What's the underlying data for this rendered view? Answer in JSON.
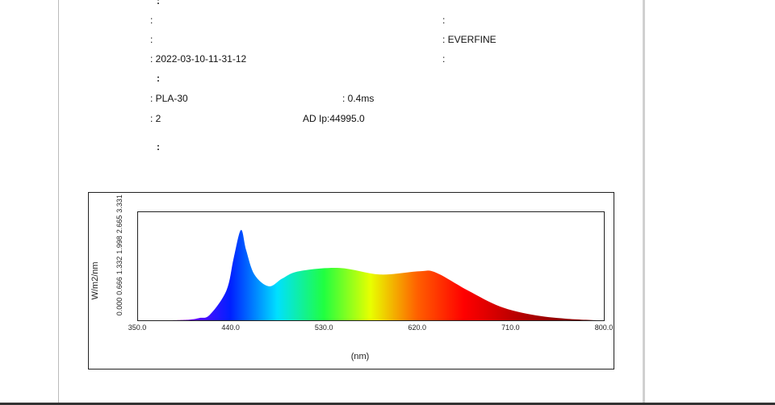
{
  "document": {
    "items": [
      ":",
      ":",
      ":",
      ":",
      ": EVERFINE",
      ": 2022-03-10-11-31-12",
      ":",
      ":",
      ": PLA-30",
      ": 0.4ms",
      ": 2",
      "AD Ip:44995.0",
      ":"
    ]
  },
  "chart_data": {
    "type": "area",
    "ylabel": "W/m2/nm",
    "xlabel": "(nm)",
    "x": [
      380,
      400,
      410,
      420,
      436,
      443,
      450,
      455,
      463,
      477,
      490,
      506,
      545,
      584,
      622,
      638,
      669,
      700,
      731,
      763,
      794
    ],
    "values": [
      0,
      0.02,
      0.07,
      0.17,
      0.91,
      1.9,
      2.76,
      2.15,
      1.4,
      1.04,
      1.28,
      1.5,
      1.6,
      1.4,
      1.5,
      1.46,
      0.91,
      0.42,
      0.17,
      0.05,
      0
    ],
    "colors": [
      "#800080",
      "#7f00ff",
      "#0020ff",
      "#00e0ff",
      "#20ff40",
      "#e8ff00",
      "#ff6000",
      "#ff0000",
      "#c00000",
      "#900000",
      "#800000"
    ],
    "xlim": [
      350,
      800
    ],
    "xticks": [
      {
        "value": 350,
        "label": "350.0"
      },
      {
        "value": 440,
        "label": "440.0"
      },
      {
        "value": 530,
        "label": "530.0"
      },
      {
        "value": 620,
        "label": "620.0"
      },
      {
        "value": 710,
        "label": "710.0"
      },
      {
        "value": 800,
        "label": "800.0"
      }
    ],
    "ylim": [
      0,
      3.331
    ],
    "yticks": [
      {
        "value": 0,
        "label": "0.000"
      },
      0.666,
      1.332,
      1.998,
      2.665,
      3.331
    ]
  }
}
